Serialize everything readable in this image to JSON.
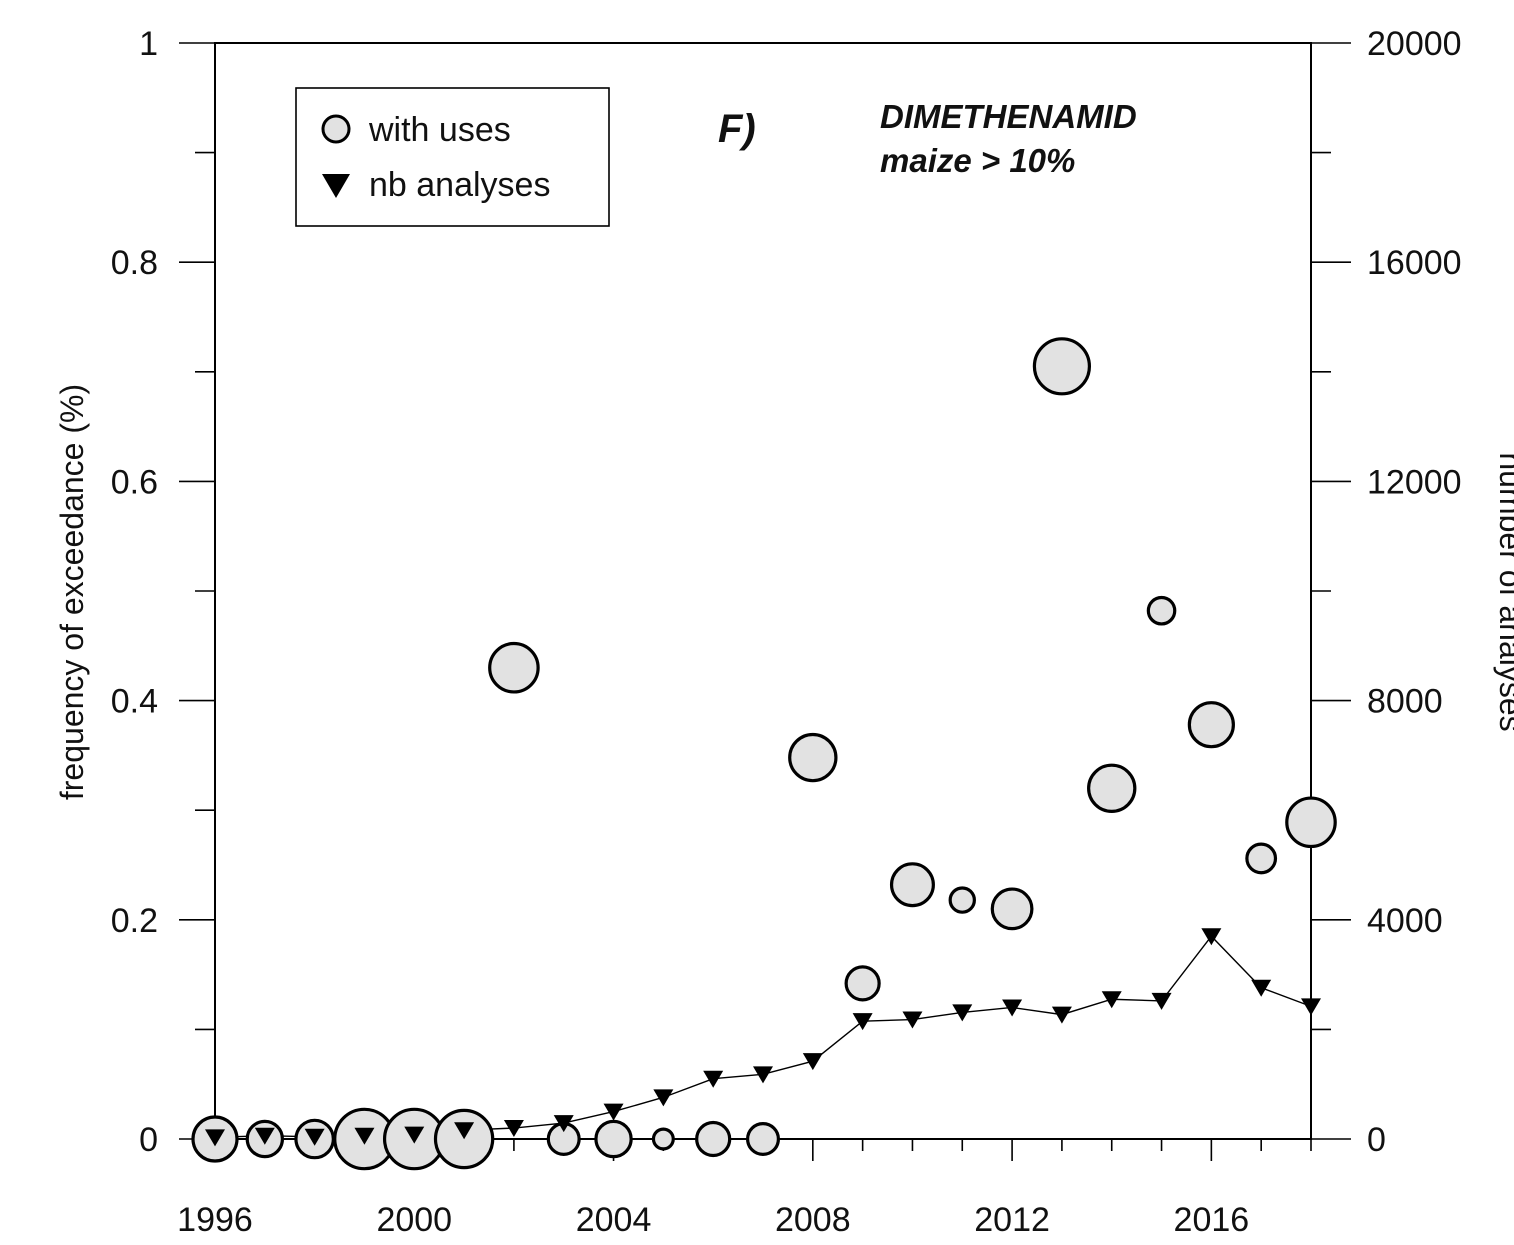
{
  "chart_data": {
    "type": "scatter",
    "panel_label": "F)",
    "annotation": {
      "line1": "DIMETHENAMID",
      "line2": "maize > 10%"
    },
    "x_axis": {
      "range": [
        1996,
        2018
      ],
      "ticks": [
        "1996",
        "2000",
        "2004",
        "2008",
        "2012",
        "2016"
      ]
    },
    "y_left": {
      "label": "frequency of exceedance (%)",
      "range": [
        0,
        1
      ],
      "ticks": [
        "0",
        "0.2",
        "0.4",
        "0.6",
        "0.8",
        "1"
      ]
    },
    "y_right": {
      "label": "number of analyses",
      "range": [
        0,
        20000
      ],
      "ticks": [
        "0",
        "4000",
        "8000",
        "12000",
        "16000",
        "20000"
      ]
    },
    "legend": {
      "position": "top-left",
      "entries": [
        {
          "label": "with uses",
          "marker": "circle"
        },
        {
          "label": "nb analyses",
          "marker": "triangle-down"
        }
      ]
    },
    "colors": {
      "circle_fill": "#e2e2e2",
      "stroke": "#000000"
    },
    "series": [
      {
        "name": "with uses",
        "axis": "left",
        "marker": "circle",
        "x": [
          1996,
          1997,
          1998,
          1999,
          2000,
          2001,
          2002,
          2003,
          2004,
          2005,
          2006,
          2007,
          2008,
          2009,
          2010,
          2011,
          2012,
          2013,
          2014,
          2015,
          2016,
          2017,
          2018
        ],
        "y": [
          0,
          0,
          0,
          0,
          0,
          0,
          0.43,
          0,
          0,
          0,
          0,
          0,
          0.348,
          0.142,
          0.232,
          0.218,
          0.21,
          0.705,
          0.32,
          0.482,
          0.378,
          0.256,
          0.289
        ],
        "marker_size": [
          2,
          1.6,
          1.7,
          2.7,
          2.7,
          2.6,
          2.2,
          1.4,
          1.6,
          0.9,
          1.5,
          1.4,
          2.1,
          1.5,
          1.9,
          1.1,
          1.8,
          2.5,
          2.1,
          1.2,
          2.0,
          1.3,
          2.2
        ]
      },
      {
        "name": "nb analyses",
        "axis": "right",
        "marker": "triangle-down",
        "x": [
          1996,
          1997,
          1998,
          1999,
          2000,
          2001,
          2002,
          2003,
          2004,
          2005,
          2006,
          2007,
          2008,
          2009,
          2010,
          2011,
          2012,
          2013,
          2014,
          2015,
          2016,
          2017,
          2018
        ],
        "y": [
          30,
          60,
          40,
          60,
          80,
          160,
          200,
          290,
          500,
          760,
          1100,
          1180,
          1420,
          2150,
          2180,
          2310,
          2400,
          2270,
          2550,
          2520,
          3700,
          2760,
          2420
        ]
      }
    ]
  }
}
